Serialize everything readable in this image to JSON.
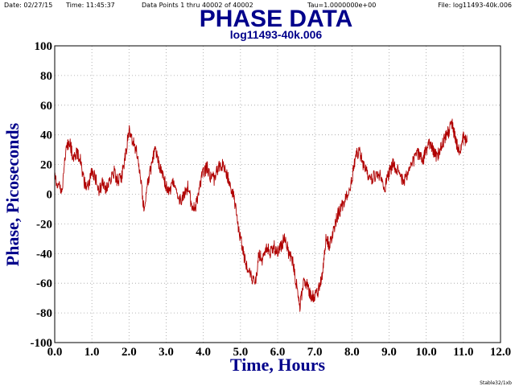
{
  "header": {
    "date": "Date: 02/27/15",
    "time": "Time: 11:45:37",
    "points": "Data Points 1 thru 40002 of 40002",
    "tau": "Tau=1.0000000e+00",
    "file": "File: log11493-40k.006"
  },
  "footer": {
    "credit": "Stable32/1xb"
  },
  "colors": {
    "title": "#00008b",
    "data": "#b00000",
    "grid": "#a0a0a0"
  },
  "chart_data": {
    "type": "line",
    "title": "PHASE DATA",
    "subtitle": "log11493-40k.006",
    "xlabel": "Time, Hours",
    "ylabel": "Phase, Picoseconds",
    "xlim": [
      0,
      12
    ],
    "ylim": [
      -100,
      100
    ],
    "x_ticks": [
      "0.0",
      "1.0",
      "2.0",
      "3.0",
      "4.0",
      "5.0",
      "6.0",
      "7.0",
      "8.0",
      "9.0",
      "10.0",
      "11.0",
      "12.0"
    ],
    "y_ticks": [
      "100",
      "80",
      "60",
      "40",
      "20",
      "0",
      "-20",
      "-40",
      "-60",
      "-80",
      "-100"
    ],
    "grid": true,
    "series": [
      {
        "x": [
          0.0,
          0.1,
          0.2,
          0.3,
          0.4,
          0.5,
          0.6,
          0.7,
          0.8,
          0.9,
          1.0,
          1.1,
          1.2,
          1.3,
          1.4,
          1.5,
          1.6,
          1.7,
          1.8,
          1.9,
          2.0,
          2.1,
          2.2,
          2.3,
          2.4,
          2.5,
          2.6,
          2.7,
          2.8,
          2.9,
          3.0,
          3.1,
          3.2,
          3.3,
          3.4,
          3.5,
          3.6,
          3.7,
          3.8,
          3.9,
          4.0,
          4.1,
          4.2,
          4.3,
          4.4,
          4.5,
          4.6,
          4.7,
          4.8,
          4.9,
          5.0,
          5.1,
          5.2,
          5.3,
          5.4,
          5.5,
          5.6,
          5.7,
          5.8,
          5.9,
          6.0,
          6.1,
          6.2,
          6.3,
          6.4,
          6.5,
          6.6,
          6.7,
          6.8,
          6.9,
          7.0,
          7.1,
          7.2,
          7.3,
          7.4,
          7.5,
          7.6,
          7.7,
          7.8,
          7.9,
          8.0,
          8.1,
          8.2,
          8.3,
          8.4,
          8.5,
          8.6,
          8.7,
          8.8,
          8.9,
          9.0,
          9.1,
          9.2,
          9.3,
          9.4,
          9.5,
          9.6,
          9.7,
          9.8,
          9.9,
          10.0,
          10.1,
          10.2,
          10.3,
          10.4,
          10.5,
          10.6,
          10.7,
          10.8,
          10.9,
          11.0,
          11.1
        ],
        "y": [
          12,
          5,
          2,
          30,
          35,
          25,
          28,
          22,
          8,
          5,
          15,
          10,
          2,
          8,
          3,
          10,
          15,
          8,
          12,
          25,
          44,
          35,
          30,
          15,
          -10,
          8,
          18,
          32,
          20,
          15,
          5,
          2,
          8,
          -2,
          -5,
          0,
          6,
          -12,
          -8,
          5,
          15,
          18,
          12,
          10,
          18,
          20,
          15,
          8,
          0,
          -15,
          -30,
          -42,
          -50,
          -55,
          -60,
          -40,
          -45,
          -35,
          -40,
          -35,
          -40,
          -35,
          -28,
          -40,
          -45,
          -60,
          -75,
          -60,
          -62,
          -68,
          -70,
          -65,
          -55,
          -30,
          -35,
          -25,
          -15,
          -10,
          -5,
          0,
          10,
          25,
          30,
          20,
          15,
          10,
          12,
          15,
          10,
          5,
          15,
          20,
          18,
          12,
          8,
          15,
          20,
          25,
          28,
          22,
          30,
          35,
          28,
          25,
          32,
          38,
          42,
          48,
          35,
          30,
          38,
          35
        ]
      }
    ]
  }
}
